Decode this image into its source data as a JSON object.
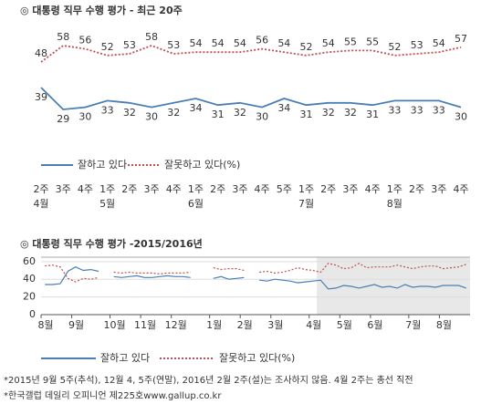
{
  "chart_data": [
    {
      "type": "line",
      "title": "◎ 대통령 직무 수행 평가 - 최근 20주",
      "categories": [
        "2주",
        "3주",
        "4주",
        "1주",
        "2주",
        "3주",
        "4주",
        "1주",
        "2주",
        "3주",
        "4주",
        "5주",
        "1주",
        "2주",
        "3주",
        "4주",
        "1주",
        "2주",
        "3주",
        "4주"
      ],
      "month_labels": [
        "4월",
        null,
        null,
        "5월",
        null,
        null,
        null,
        "6월",
        null,
        null,
        null,
        null,
        "7월",
        null,
        null,
        null,
        "8월",
        null,
        null,
        null
      ],
      "series": [
        {
          "name": "잘하고 있다",
          "color": "#4a7fb5",
          "style": "solid",
          "values": [
            39,
            29,
            30,
            33,
            32,
            30,
            32,
            34,
            31,
            32,
            30,
            34,
            31,
            32,
            32,
            31,
            33,
            33,
            33,
            30
          ]
        },
        {
          "name": "잘못하고 있다(%)",
          "color": "#c0504d",
          "style": "dotted",
          "values": [
            48,
            58,
            56,
            52,
            53,
            58,
            53,
            54,
            54,
            54,
            56,
            54,
            52,
            54,
            55,
            55,
            52,
            53,
            54,
            57
          ]
        }
      ]
    },
    {
      "type": "line",
      "title": "◎ 대통령 직무 수행 평가 -2015/2016년",
      "categories": [
        "8월",
        null,
        null,
        null,
        "9월",
        null,
        null,
        null,
        null,
        "10월",
        null,
        null,
        null,
        "11월",
        null,
        null,
        null,
        "12월",
        null,
        null,
        null,
        null,
        "1월",
        null,
        null,
        null,
        "2월",
        null,
        null,
        null,
        "3월",
        null,
        null,
        null,
        null,
        "4월",
        null,
        null,
        null,
        "5월",
        null,
        null,
        null,
        "6월",
        null,
        null,
        null,
        null,
        "7월",
        null,
        null,
        null,
        "8월",
        null,
        null,
        null
      ],
      "ylim": [
        0,
        65
      ],
      "yticks": [
        0,
        20,
        40,
        60
      ],
      "series": [
        {
          "name": "잘하고 있다",
          "color": "#4a7fb5",
          "style": "solid",
          "values": [
            34,
            34,
            35,
            49,
            54,
            50,
            51,
            49,
            null,
            43,
            42,
            43,
            44,
            42,
            42,
            43,
            44,
            43,
            43,
            42,
            null,
            null,
            41,
            43,
            40,
            41,
            42,
            null,
            39,
            38,
            40,
            39,
            38,
            36,
            37,
            38,
            39,
            29,
            30,
            33,
            32,
            30,
            32,
            34,
            31,
            32,
            30,
            34,
            31,
            32,
            32,
            31,
            33,
            33,
            33,
            30
          ]
        },
        {
          "name": "잘못하고 있다(%)",
          "color": "#c0504d",
          "style": "dotted",
          "values": [
            55,
            56,
            54,
            41,
            37,
            41,
            40,
            42,
            null,
            48,
            47,
            48,
            47,
            47,
            47,
            46,
            47,
            47,
            47,
            48,
            null,
            null,
            53,
            51,
            52,
            52,
            50,
            null,
            48,
            49,
            47,
            48,
            50,
            53,
            51,
            50,
            48,
            58,
            56,
            52,
            53,
            58,
            53,
            54,
            54,
            54,
            56,
            54,
            52,
            54,
            55,
            55,
            52,
            53,
            54,
            57
          ]
        }
      ]
    }
  ],
  "footnotes": [
    "*2015년 9월 5주(추석), 12월 4, 5주(연말), 2016년 2월 2주(설)는 조사하지 않음. 4월 2주는 총선 직전",
    "*한국갤럽 데일리 오피니언 제225호www.gallup.co.kr"
  ]
}
